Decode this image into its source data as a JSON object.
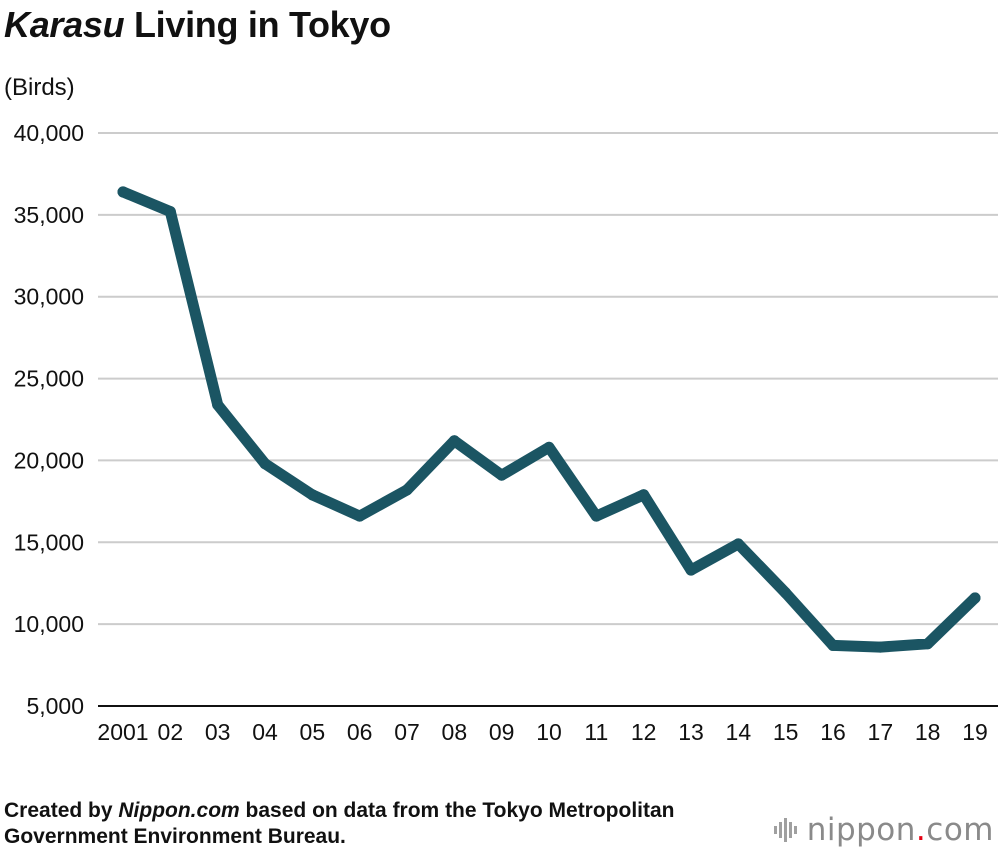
{
  "header": {
    "title_italic": "Karasu",
    "title_rest": " Living in Tokyo",
    "unit": "(Birds)"
  },
  "chart_data": {
    "type": "line",
    "title": "Karasu Living in Tokyo",
    "ylabel": "(Birds)",
    "xlabel": "",
    "categories": [
      "2001",
      "02",
      "03",
      "04",
      "05",
      "06",
      "07",
      "08",
      "09",
      "10",
      "11",
      "12",
      "13",
      "14",
      "15",
      "16",
      "17",
      "18",
      "19"
    ],
    "series": [
      {
        "name": "Karasu",
        "values": [
          36400,
          35200,
          23400,
          19800,
          17900,
          16600,
          18200,
          21200,
          19100,
          20800,
          16600,
          17900,
          13300,
          14900,
          11900,
          8700,
          8600,
          8800,
          11600
        ]
      }
    ],
    "ylim": [
      5000,
      40000
    ],
    "yticks": [
      40000,
      35000,
      30000,
      25000,
      20000,
      15000,
      10000,
      5000
    ],
    "ytick_labels": [
      "40,000",
      "35,000",
      "30,000",
      "25,000",
      "20,000",
      "15,000",
      "10,000",
      "5,000"
    ],
    "grid": true,
    "line_color": "#1b5563",
    "grid_color": "#cccccc"
  },
  "footer": {
    "source_prefix": "Created by ",
    "source_italic": "Nippon.com",
    "source_rest": " based on data from the Tokyo Metropolitan Government Environment Bureau.",
    "logo_word": "nippon",
    "logo_dot": ".",
    "logo_tld": "com",
    "logo_icon": "nippon-logo-icon"
  }
}
